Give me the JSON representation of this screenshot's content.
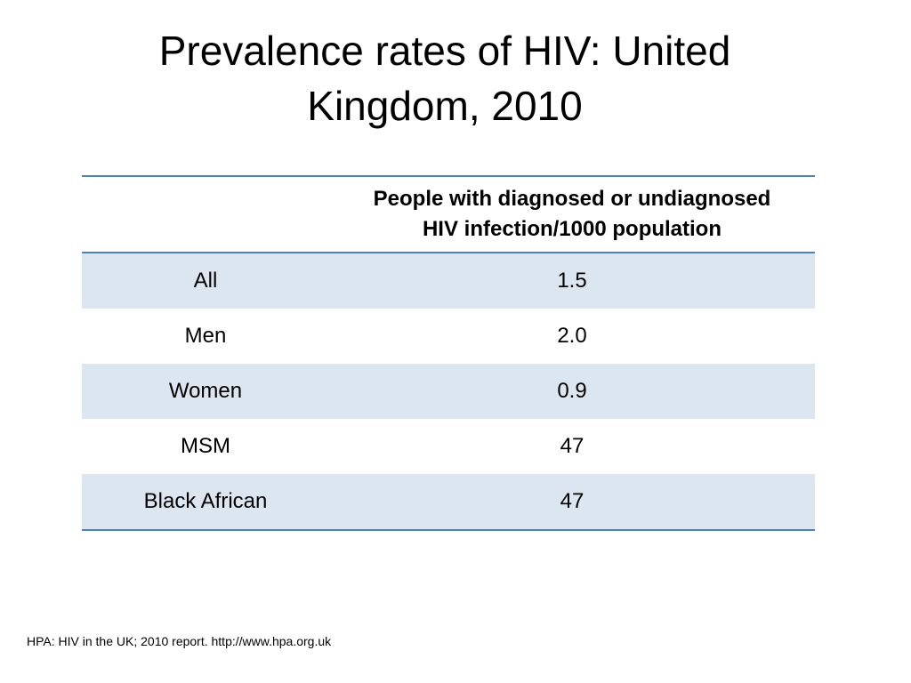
{
  "slide": {
    "title_line1": "Prevalence rates of HIV: United",
    "title_line2": "Kingdom, 2010"
  },
  "table": {
    "header": {
      "group_label": "",
      "value_label_line1": "People with diagnosed or undiagnosed",
      "value_label_line2": "HIV infection/1000 population"
    },
    "rows": [
      {
        "group": "All",
        "value": "1.5"
      },
      {
        "group": "Men",
        "value": "2.0"
      },
      {
        "group": "Women",
        "value": "0.9"
      },
      {
        "group": "MSM",
        "value": "47"
      },
      {
        "group": "Black African",
        "value": "47"
      }
    ]
  },
  "source": "HPA: HIV in the UK; 2010 report. http://www.hpa.org.uk",
  "colors": {
    "accent_border": "#4f81bd",
    "row_shading": "#dce6f1"
  }
}
